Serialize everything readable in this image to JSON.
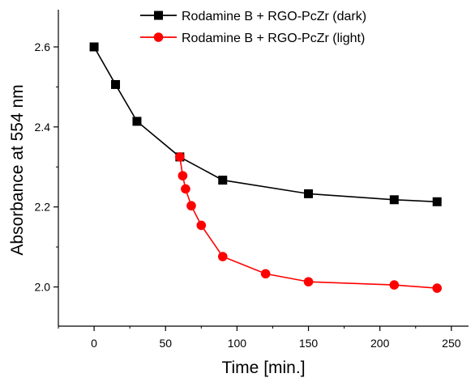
{
  "chart_data": {
    "type": "line",
    "xlabel": "Time [min.]",
    "ylabel": "Absorbance at 554 nm",
    "xlim": [
      -25,
      262
    ],
    "ylim": [
      1.902,
      2.693
    ],
    "xticks": [
      0,
      50,
      100,
      150,
      200,
      250
    ],
    "yticks": [
      2.0,
      2.2,
      2.4,
      2.6
    ],
    "legend_position": "top-right",
    "grid": false,
    "series": [
      {
        "name": "Rodamine B + RGO-PcZr (dark)",
        "color": "#000000",
        "marker": "square",
        "x": [
          0,
          15,
          30,
          60,
          90,
          150,
          210,
          240
        ],
        "y": [
          2.6,
          2.506,
          2.414,
          2.325,
          2.267,
          2.233,
          2.218,
          2.213
        ]
      },
      {
        "name": "Rodamine B + RGO-PcZr (light)",
        "color": "#ff0000",
        "marker": "circle",
        "x": [
          60,
          62,
          64,
          68,
          75,
          90,
          120,
          150,
          210,
          240
        ],
        "y": [
          2.325,
          2.278,
          2.245,
          2.203,
          2.154,
          2.076,
          2.033,
          2.013,
          2.005,
          1.997
        ]
      }
    ]
  }
}
